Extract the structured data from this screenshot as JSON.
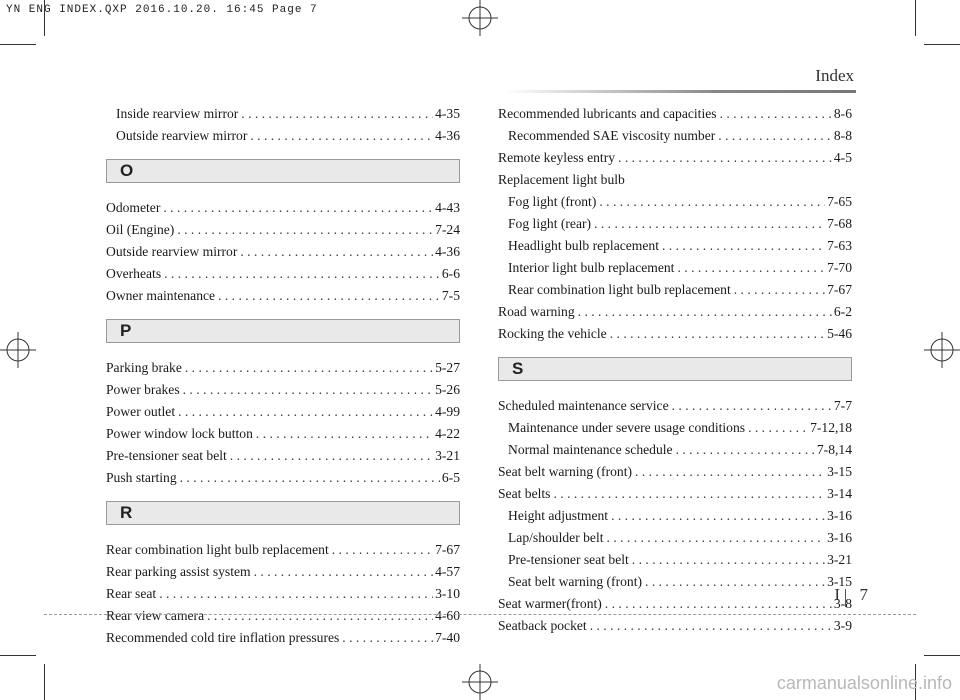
{
  "print_header": "YN ENG INDEX.QXP  2016.10.20.  16:45  Page 7",
  "page_title": "Index",
  "footer": {
    "section": "I",
    "page": "7"
  },
  "watermark": "carmanualsonline.info",
  "left_column": {
    "top_entries": [
      {
        "label": "Inside rearview mirror",
        "page": "4-35",
        "sub": true
      },
      {
        "label": "Outside rearview mirror",
        "page": "4-36",
        "sub": true
      }
    ],
    "sections": [
      {
        "letter": "O",
        "entries": [
          {
            "label": "Odometer",
            "page": "4-43"
          },
          {
            "label": "Oil (Engine)",
            "page": "7-24"
          },
          {
            "label": "Outside rearview mirror",
            "page": "4-36"
          },
          {
            "label": "Overheats",
            "page": "6-6"
          },
          {
            "label": "Owner maintenance",
            "page": "7-5"
          }
        ]
      },
      {
        "letter": "P",
        "entries": [
          {
            "label": "Parking brake",
            "page": "5-27"
          },
          {
            "label": "Power brakes",
            "page": "5-26"
          },
          {
            "label": "Power outlet",
            "page": "4-99"
          },
          {
            "label": "Power window lock button",
            "page": "4-22"
          },
          {
            "label": "Pre-tensioner seat belt",
            "page": "3-21"
          },
          {
            "label": "Push starting",
            "page": "6-5"
          }
        ]
      },
      {
        "letter": "R",
        "entries": [
          {
            "label": "Rear combination light bulb replacement",
            "page": "7-67"
          },
          {
            "label": "Rear parking assist system",
            "page": "4-57"
          },
          {
            "label": "Rear seat",
            "page": "3-10"
          },
          {
            "label": "Rear view camera",
            "page": "4-60"
          },
          {
            "label": "Recommended cold tire inflation pressures",
            "page": "7-40"
          }
        ]
      }
    ]
  },
  "right_column": {
    "top_entries": [
      {
        "label": "Recommended lubricants and capacities",
        "page": "8-6"
      },
      {
        "label": "Recommended SAE viscosity number",
        "page": "8-8",
        "sub": true
      },
      {
        "label": "Remote keyless entry",
        "page": "4-5"
      },
      {
        "label": "Replacement light bulb",
        "page": ""
      },
      {
        "label": "Fog light (front)",
        "page": "7-65",
        "sub": true
      },
      {
        "label": "Fog light (rear)",
        "page": "7-68",
        "sub": true
      },
      {
        "label": "Headlight bulb replacement",
        "page": "7-63",
        "sub": true
      },
      {
        "label": "Interior light bulb replacement",
        "page": "7-70",
        "sub": true
      },
      {
        "label": "Rear combination light bulb replacement",
        "page": "7-67",
        "sub": true
      },
      {
        "label": "Road warning",
        "page": "6-2"
      },
      {
        "label": "Rocking the vehicle",
        "page": "5-46"
      }
    ],
    "sections": [
      {
        "letter": "S",
        "entries": [
          {
            "label": "Scheduled maintenance service",
            "page": "7-7"
          },
          {
            "label": "Maintenance under severe usage conditions",
            "page": "7-12,18",
            "sub": true
          },
          {
            "label": "Normal maintenance schedule",
            "page": "7-8,14",
            "sub": true
          },
          {
            "label": "Seat belt warning (front)",
            "page": "3-15"
          },
          {
            "label": "Seat belts",
            "page": "3-14"
          },
          {
            "label": "Height adjustment",
            "page": "3-16",
            "sub": true
          },
          {
            "label": "Lap/shoulder belt",
            "page": "3-16",
            "sub": true
          },
          {
            "label": "Pre-tensioner seat belt",
            "page": "3-21",
            "sub": true
          },
          {
            "label": "Seat belt warning (front)",
            "page": "3-15",
            "sub": true
          },
          {
            "label": "Seat warmer(front)",
            "page": "3-8"
          },
          {
            "label": "Seatback pocket",
            "page": "3-9"
          }
        ]
      }
    ]
  }
}
